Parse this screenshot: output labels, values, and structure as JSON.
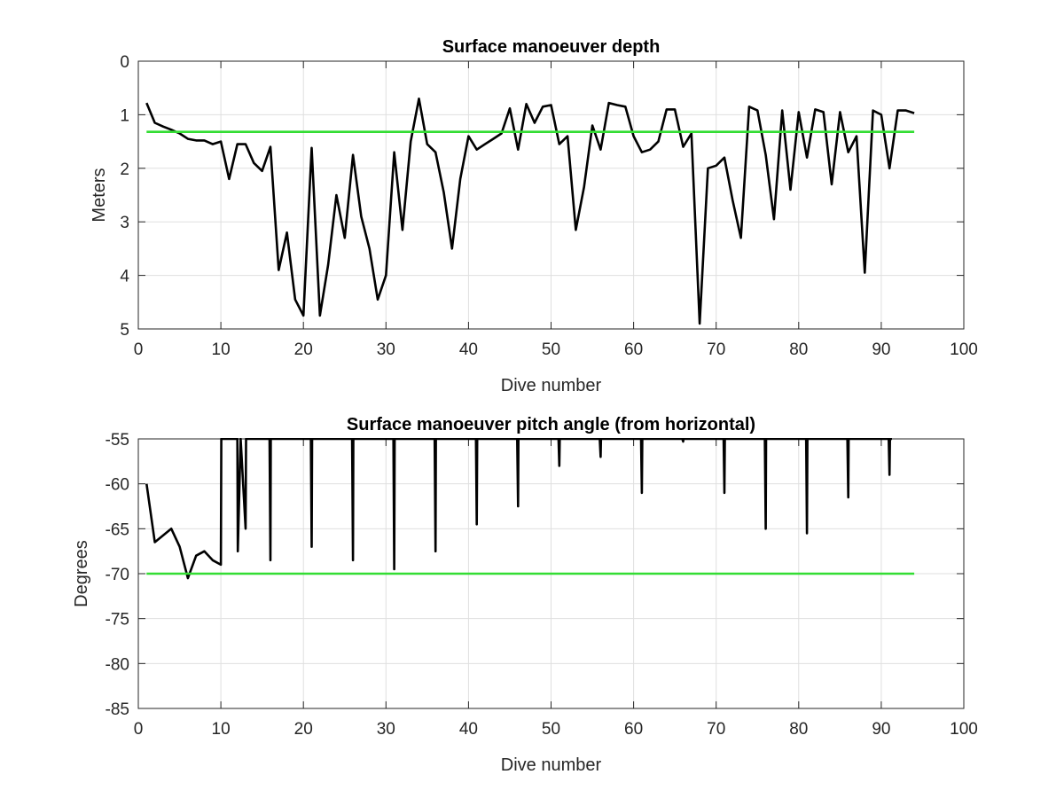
{
  "colors": {
    "data_line": "#000000",
    "reference_line": "#33dd33"
  },
  "chart_data": [
    {
      "type": "line",
      "title": "Surface manoeuver depth",
      "xlabel": "Dive number",
      "ylabel": "Meters",
      "xlim": [
        0,
        100
      ],
      "ylim": [
        0,
        5
      ],
      "y_reversed": true,
      "grid": true,
      "x_ticks": [
        "0",
        "10",
        "20",
        "30",
        "40",
        "50",
        "60",
        "70",
        "80",
        "90",
        "100"
      ],
      "y_ticks": [
        "0",
        "1",
        "2",
        "3",
        "4",
        "5"
      ],
      "series": [
        {
          "x": [
            1,
            2,
            3,
            4,
            5,
            6,
            7,
            8,
            9,
            10,
            11,
            12,
            13,
            14,
            15,
            16,
            17,
            18,
            19,
            20,
            21,
            22,
            23,
            24,
            25,
            26,
            27,
            28,
            29,
            30,
            31,
            32,
            33,
            34,
            35,
            36,
            37,
            38,
            39,
            40,
            41,
            42,
            43,
            44,
            45,
            46,
            47,
            48,
            49,
            50,
            51,
            52,
            53,
            54,
            55,
            56,
            57,
            58,
            59,
            60,
            61,
            62,
            63,
            64,
            65,
            66,
            67,
            68,
            69,
            70,
            71,
            72,
            73,
            74,
            75,
            76,
            77,
            78,
            79,
            80,
            81,
            82,
            83,
            84,
            85,
            86,
            87,
            88,
            89,
            90,
            91,
            92,
            93,
            94
          ],
          "values": [
            0.78,
            1.15,
            1.22,
            1.28,
            1.35,
            1.45,
            1.48,
            1.48,
            1.55,
            1.5,
            2.2,
            1.55,
            1.55,
            1.9,
            2.05,
            1.6,
            3.9,
            3.2,
            4.45,
            4.75,
            1.62,
            4.75,
            3.8,
            2.5,
            3.3,
            1.75,
            2.9,
            3.5,
            4.45,
            4.0,
            1.7,
            3.15,
            1.5,
            0.7,
            1.55,
            1.7,
            2.45,
            3.5,
            2.2,
            1.4,
            1.65,
            1.55,
            1.45,
            1.35,
            0.88,
            1.65,
            0.8,
            1.15,
            0.85,
            0.82,
            1.55,
            1.4,
            3.15,
            2.35,
            1.2,
            1.65,
            0.78,
            0.82,
            0.85,
            1.4,
            1.7,
            1.65,
            1.5,
            0.9,
            0.9,
            1.6,
            1.35,
            4.9,
            2.0,
            1.95,
            1.8,
            2.6,
            3.3,
            0.85,
            0.92,
            1.75,
            2.95,
            0.92,
            2.4,
            0.95,
            1.8,
            0.9,
            0.95,
            2.3,
            0.95,
            1.7,
            1.4,
            3.95,
            0.92,
            1.0,
            2.0,
            0.92,
            0.92,
            0.97
          ]
        },
        {
          "x": [
            1,
            94
          ],
          "values": [
            1.32,
            1.32
          ]
        }
      ]
    },
    {
      "type": "line",
      "title": "Surface manoeuver pitch angle (from horizontal)",
      "xlabel": "Dive number",
      "ylabel": "Degrees",
      "xlim": [
        0,
        100
      ],
      "ylim": [
        -85,
        -55
      ],
      "grid": true,
      "x_ticks": [
        "0",
        "10",
        "20",
        "30",
        "40",
        "50",
        "60",
        "70",
        "80",
        "90",
        "100"
      ],
      "y_ticks": [
        "-55",
        "-60",
        "-65",
        "-70",
        "-75",
        "-80",
        "-85"
      ],
      "series": [
        {
          "x": [
            1,
            2,
            4,
            5,
            6,
            7,
            8,
            9,
            10,
            10.05,
            10.3,
            11,
            12,
            12.05,
            12.4,
            13,
            13.05,
            13.4,
            15.9,
            16,
            16.05,
            16.3,
            20.9,
            21,
            21.05,
            21.3,
            25.9,
            26,
            26.05,
            26.3,
            30.9,
            31,
            31.05,
            31.3,
            35.9,
            36,
            36.05,
            36.3,
            40.9,
            41,
            41.05,
            41.3,
            45.9,
            46,
            46.05,
            46.3,
            50.9,
            51,
            51.05,
            51.3,
            55.9,
            56,
            56.05,
            56.3,
            60.9,
            61,
            61.05,
            61.3,
            65.9,
            66,
            66.05,
            66.3,
            70.9,
            71,
            71.05,
            71.3,
            75.9,
            76,
            76.05,
            76.3,
            80.9,
            81,
            81.05,
            81.3,
            85.9,
            86,
            86.05,
            86.3,
            90.9,
            91,
            91.05,
            91.3
          ],
          "values": [
            -60,
            -66.5,
            -65,
            -67,
            -70.5,
            -68,
            -67.5,
            -68.5,
            -69,
            -55,
            -55,
            -55,
            -55,
            -67.5,
            -55,
            -65,
            -55,
            -55,
            -55,
            -68.5,
            -55,
            -55,
            -55,
            -67,
            -55,
            -55,
            -55,
            -68.5,
            -55,
            -55,
            -55,
            -69.5,
            -55,
            -55,
            -55,
            -67.5,
            -55,
            -55,
            -55,
            -64.5,
            -55,
            -55,
            -55,
            -62.5,
            -55,
            -55,
            -55,
            -58,
            -55,
            -55,
            -55,
            -57,
            -55,
            -55,
            -55,
            -61,
            -55,
            -55,
            -55,
            -55.3,
            -55,
            -55,
            -55,
            -61,
            -55,
            -55,
            -55,
            -65,
            -55,
            -55,
            -55,
            -65.5,
            -55,
            -55,
            -55,
            -61.5,
            -55,
            -55,
            -55,
            -59,
            -55,
            -55
          ]
        },
        {
          "x": [
            1,
            94
          ],
          "values": [
            -70,
            -70
          ]
        }
      ]
    }
  ]
}
